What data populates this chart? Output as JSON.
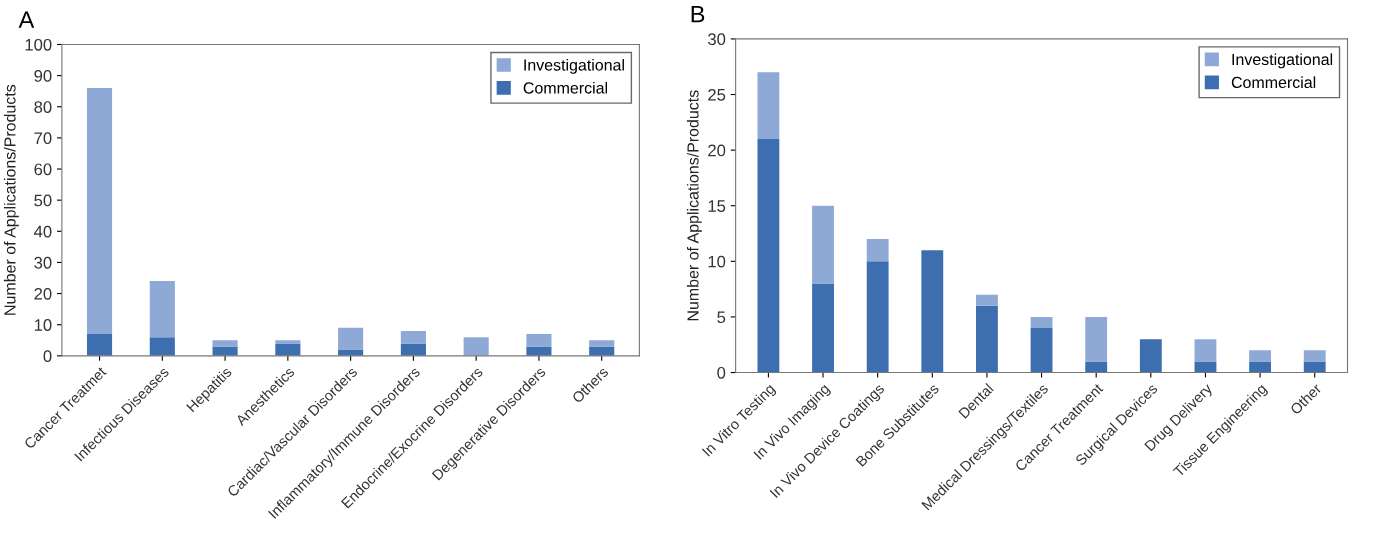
{
  "chart_data": [
    {
      "type": "bar",
      "title": "A",
      "ylabel": "Number of Applications/Products",
      "stacked": true,
      "legend": "top right",
      "grid": false,
      "categories": [
        "Cancer Treatmet",
        "Infectious Diseases",
        "Hepatitis",
        "Anesthetics",
        "Cardiac/Vascular Disorders",
        "Inflammatory/Immune Disorders",
        "Endocrine/Exocrine Disorders",
        "Degenerative Disorders",
        "Others"
      ],
      "ylim": [
        0,
        100
      ],
      "yticks": [
        0,
        10,
        20,
        30,
        40,
        50,
        60,
        70,
        80,
        90,
        100
      ],
      "series": [
        {
          "name": "Commercial",
          "color": "#3c6eb0",
          "values": [
            7,
            6,
            3,
            4,
            2,
            4,
            0,
            3,
            3
          ]
        },
        {
          "name": "Investigational",
          "color": "#8fa9d6",
          "values": [
            79,
            18,
            2,
            1,
            7,
            4,
            6,
            4,
            2
          ]
        }
      ]
    },
    {
      "type": "bar",
      "title": "B",
      "ylabel": "Number of Applications/Products",
      "stacked": true,
      "legend": "top right",
      "grid": false,
      "categories": [
        "In Vitro Testing",
        "In Vivo Imaging",
        "In Vivo Device Coatings",
        "Bone Substitutes",
        "Dental",
        "Medical Dressings/Textiles",
        "Cancer Treatment",
        "Surgical Devices",
        "Drug Delivery",
        "Tissue Engineering",
        "Other"
      ],
      "ylim": [
        0,
        30
      ],
      "yticks": [
        0,
        5,
        10,
        15,
        20,
        25,
        30
      ],
      "series": [
        {
          "name": "Commercial",
          "color": "#3c6eb0",
          "values": [
            21,
            8,
            10,
            11,
            6,
            4,
            1,
            3,
            1,
            1,
            1
          ]
        },
        {
          "name": "Investigational",
          "color": "#8fa9d6",
          "values": [
            6,
            7,
            2,
            0,
            1,
            1,
            4,
            0,
            2,
            1,
            1
          ]
        }
      ]
    }
  ]
}
